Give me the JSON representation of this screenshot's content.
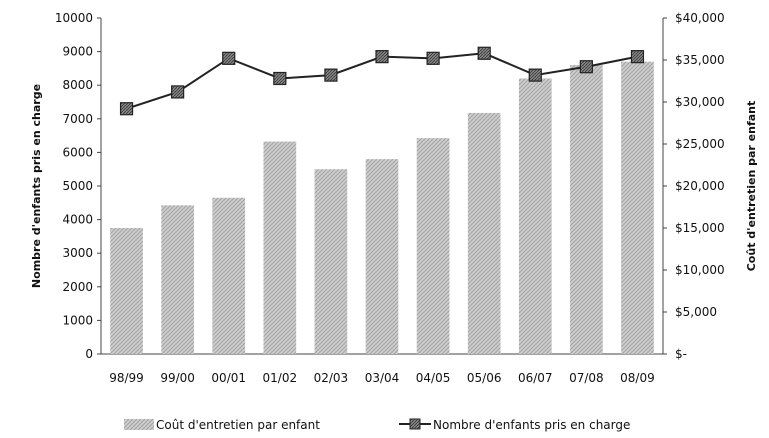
{
  "chart_data": {
    "type": "bar+line",
    "categories": [
      "98/99",
      "99/00",
      "00/01",
      "01/02",
      "02/03",
      "03/04",
      "04/05",
      "05/06",
      "06/07",
      "07/08",
      "08/09"
    ],
    "series": [
      {
        "name": "Coût d'entretien par enfant",
        "type": "bar",
        "axis": "right",
        "values": [
          15000,
          17700,
          18600,
          25300,
          22000,
          23200,
          25700,
          28700,
          32800,
          34400,
          34800
        ]
      },
      {
        "name": "Nombre d'enfants pris en charge",
        "type": "line",
        "axis": "left",
        "values": [
          7300,
          7800,
          8800,
          8200,
          8300,
          8850,
          8800,
          8950,
          8300,
          8550,
          8850
        ]
      }
    ],
    "y_left": {
      "label": "Nombre d'enfants pris en charge",
      "lim": [
        0,
        10000
      ],
      "ticks": [
        0,
        1000,
        2000,
        3000,
        4000,
        5000,
        6000,
        7000,
        8000,
        9000,
        10000
      ],
      "tick_labels": [
        "0",
        "1000",
        "2000",
        "3000",
        "4000",
        "5000",
        "6000",
        "7000",
        "8000",
        "9000",
        "10000"
      ]
    },
    "y_right": {
      "label": "Coût d'entretien par enfant",
      "lim": [
        0,
        40000
      ],
      "ticks": [
        0,
        5000,
        10000,
        15000,
        20000,
        25000,
        30000,
        35000,
        40000
      ],
      "tick_labels": [
        "$-",
        "$5,000",
        "$10,000",
        "$15,000",
        "$20,000",
        "$25,000",
        "$30,000",
        "$35,000",
        "$40,000"
      ]
    },
    "legend_position": "bottom",
    "grid": false,
    "colors": {
      "bar": "#c9c9c9",
      "line": "#222222",
      "marker": "#7a7a7a"
    }
  }
}
